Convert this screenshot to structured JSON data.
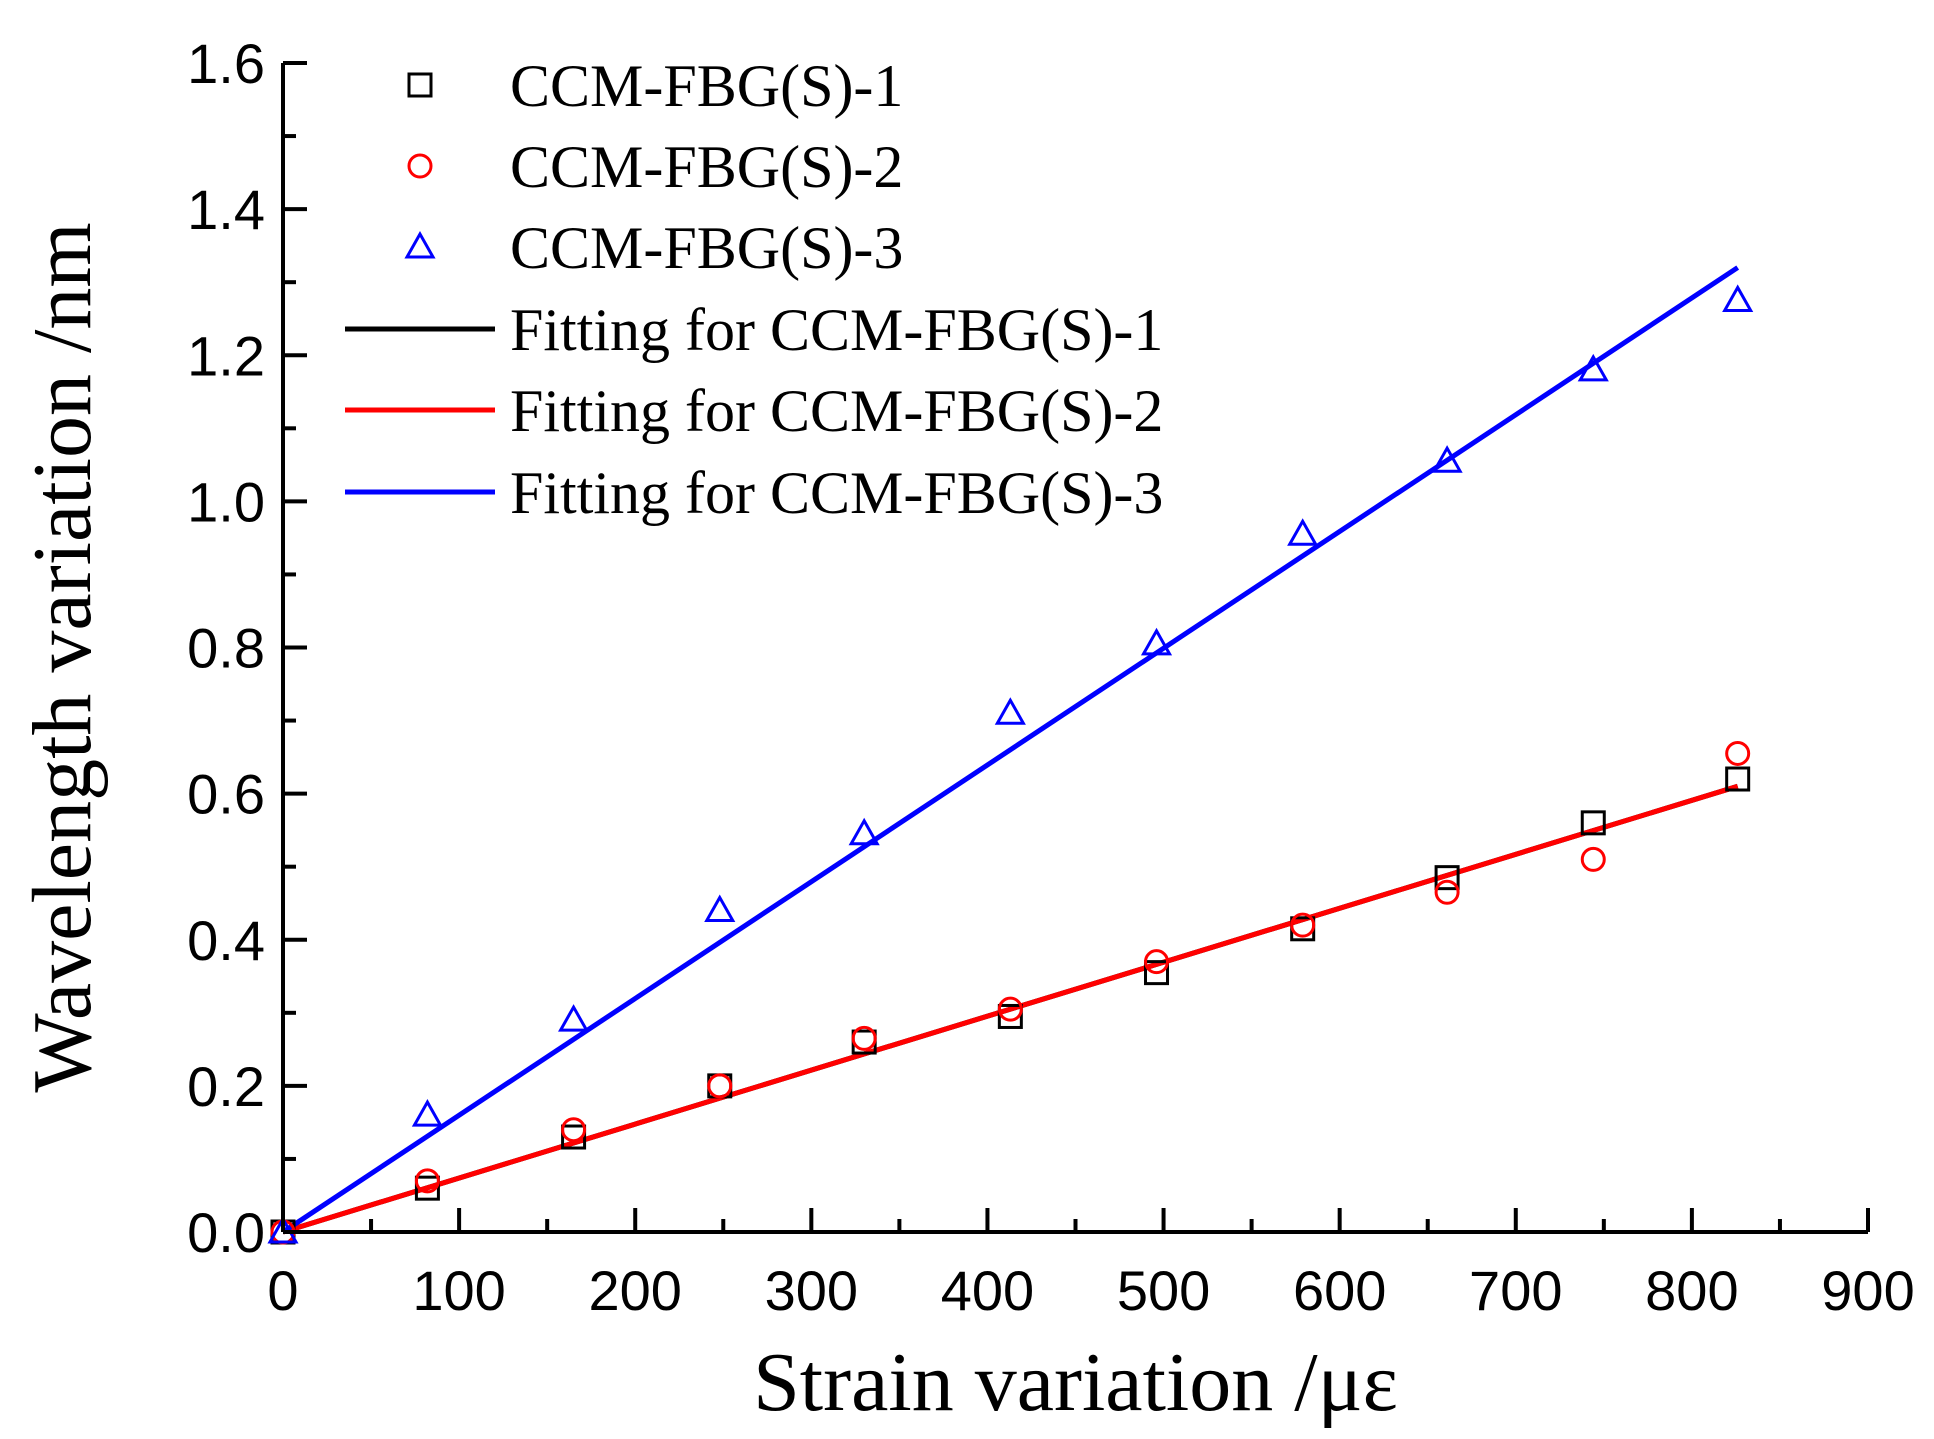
{
  "chart_data": {
    "type": "scatter",
    "title": "",
    "xlabel": "Strain variation /με",
    "ylabel": "Wavelength variation /nm",
    "xlim": [
      0,
      900
    ],
    "ylim": [
      0,
      1.6
    ],
    "xticks": [
      0,
      100,
      200,
      300,
      400,
      500,
      600,
      700,
      800,
      900
    ],
    "yticks": [
      0.0,
      0.2,
      0.4,
      0.6,
      0.8,
      1.0,
      1.2,
      1.4,
      1.6
    ],
    "xtick_labels": [
      "0",
      "100",
      "200",
      "300",
      "400",
      "500",
      "600",
      "700",
      "800",
      "900"
    ],
    "ytick_labels": [
      "0.0",
      "0.2",
      "0.4",
      "0.6",
      "0.8",
      "1.0",
      "1.2",
      "1.4",
      "1.6"
    ],
    "grid": false,
    "legend_position": "top-left",
    "series": [
      {
        "name": "CCM-FBG(S)-1",
        "kind": "scatter",
        "marker": "square",
        "color": "#000000",
        "x": [
          0,
          82,
          165,
          248,
          330,
          413,
          496,
          579,
          661,
          744,
          826
        ],
        "y": [
          0.0,
          0.06,
          0.13,
          0.2,
          0.26,
          0.295,
          0.355,
          0.415,
          0.485,
          0.56,
          0.62
        ]
      },
      {
        "name": "CCM-FBG(S)-2",
        "kind": "scatter",
        "marker": "circle",
        "color": "#ff0000",
        "x": [
          0,
          82,
          165,
          248,
          330,
          413,
          496,
          579,
          661,
          744,
          826
        ],
        "y": [
          0.0,
          0.07,
          0.14,
          0.2,
          0.265,
          0.305,
          0.37,
          0.42,
          0.465,
          0.51,
          0.655
        ]
      },
      {
        "name": "CCM-FBG(S)-3",
        "kind": "scatter",
        "marker": "triangle",
        "color": "#0000ff",
        "x": [
          0,
          82,
          165,
          248,
          330,
          413,
          496,
          579,
          661,
          744,
          826
        ],
        "y": [
          0.0,
          0.16,
          0.29,
          0.44,
          0.545,
          0.71,
          0.805,
          0.955,
          1.055,
          1.18,
          1.275
        ]
      },
      {
        "name": "Fitting for CCM-FBG(S)-1",
        "kind": "line",
        "color": "#000000",
        "x": [
          0,
          826
        ],
        "y": [
          0.0,
          0.61
        ]
      },
      {
        "name": "Fitting for CCM-FBG(S)-2",
        "kind": "line",
        "color": "#ff0000",
        "x": [
          0,
          826
        ],
        "y": [
          0.0,
          0.61
        ]
      },
      {
        "name": "Fitting for CCM-FBG(S)-3",
        "kind": "line",
        "color": "#0000ff",
        "x": [
          0,
          826
        ],
        "y": [
          0.0,
          1.32
        ]
      }
    ]
  }
}
